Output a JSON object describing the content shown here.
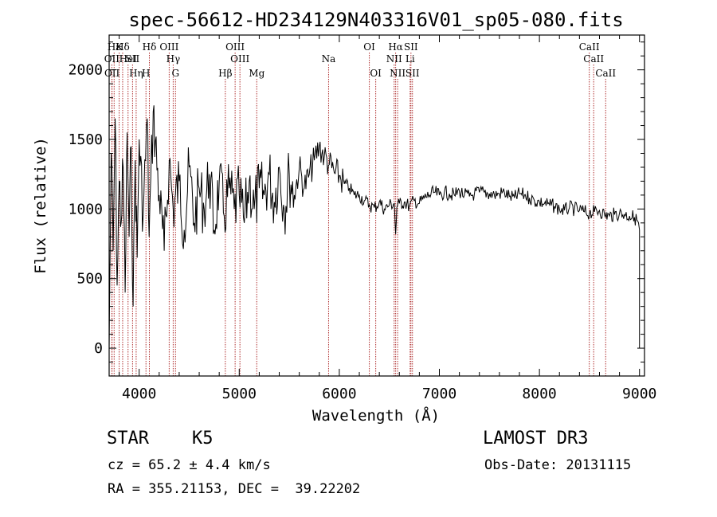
{
  "chart_data": {
    "type": "line",
    "title": "spec-56612-HD234129N403316V01_sp05-080.fits",
    "xlabel": "Wavelength (Å)",
    "ylabel": "Flux (relative)",
    "xlim": [
      3700,
      9050
    ],
    "ylim": [
      -200,
      2250
    ],
    "xticks": [
      4000,
      5000,
      6000,
      7000,
      8000,
      9000
    ],
    "yticks": [
      0,
      500,
      1000,
      1500,
      2000
    ],
    "series": [
      {
        "name": "flux",
        "x": [
          3700,
          3720,
          3740,
          3760,
          3780,
          3800,
          3820,
          3840,
          3860,
          3880,
          3900,
          3920,
          3940,
          3960,
          3980,
          4000,
          4040,
          4080,
          4100,
          4140,
          4200,
          4250,
          4300,
          4340,
          4400,
          4450,
          4500,
          4550,
          4600,
          4650,
          4700,
          4750,
          4800,
          4850,
          4900,
          4950,
          5000,
          5050,
          5100,
          5150,
          5200,
          5250,
          5300,
          5350,
          5400,
          5450,
          5500,
          5550,
          5600,
          5650,
          5700,
          5750,
          5800,
          5850,
          5900,
          5950,
          6000,
          6050,
          6100,
          6150,
          6200,
          6250,
          6300,
          6350,
          6400,
          6450,
          6500,
          6550,
          6563,
          6575,
          6600,
          6650,
          6700,
          6750,
          6800,
          6850,
          6900,
          6950,
          7000,
          7050,
          7100,
          7150,
          7200,
          7250,
          7300,
          7350,
          7400,
          7450,
          7500,
          7550,
          7600,
          7650,
          7700,
          7750,
          7800,
          7850,
          7900,
          7950,
          8000,
          8050,
          8100,
          8150,
          8200,
          8250,
          8300,
          8350,
          8400,
          8450,
          8500,
          8550,
          8600,
          8650,
          8700,
          8750,
          8800,
          8850,
          8900,
          8950,
          8990,
          9000
        ],
        "values": [
          0,
          1400,
          700,
          1650,
          450,
          1200,
          900,
          1300,
          400,
          1550,
          800,
          1450,
          300,
          1350,
          650,
          1500,
          950,
          1650,
          800,
          1700,
          1100,
          700,
          1350,
          1000,
          1200,
          850,
          1300,
          900,
          1150,
          1000,
          1250,
          850,
          1200,
          950,
          1150,
          1000,
          1100,
          900,
          1200,
          1000,
          1150,
          1100,
          1250,
          1050,
          1300,
          1000,
          1250,
          1100,
          1300,
          1150,
          1250,
          1350,
          1450,
          1380,
          1320,
          1260,
          1240,
          1180,
          1150,
          1100,
          1100,
          1060,
          1030,
          1010,
          1050,
          1000,
          1030,
          1040,
          820,
          1010,
          1040,
          1050,
          1020,
          1060,
          1040,
          1080,
          1100,
          1120,
          1100,
          1120,
          1110,
          1100,
          1130,
          1100,
          1090,
          1110,
          1120,
          1120,
          1110,
          1100,
          1110,
          1120,
          1090,
          1080,
          1110,
          1100,
          1080,
          1060,
          1050,
          1040,
          1030,
          1020,
          1000,
          990,
          1010,
          1000,
          990,
          980,
          970,
          980,
          990,
          960,
          950,
          960,
          970,
          960,
          950,
          940,
          900,
          850
        ]
      }
    ],
    "lines": [
      {
        "label": "Hε",
        "wl": 3750,
        "row": 0
      },
      {
        "label": "K",
        "wl": 3800,
        "row": 0
      },
      {
        "label": "Hδ",
        "wl": 3835,
        "row": 0
      },
      {
        "label": "OII",
        "wl": 3727,
        "row": 1
      },
      {
        "label": "HeI",
        "wl": 3889,
        "row": 1
      },
      {
        "label": "SII",
        "wl": 3934,
        "row": 1
      },
      {
        "label": "OII",
        "wl": 3729,
        "row": 2
      },
      {
        "label": "Hη",
        "wl": 3970,
        "row": 2
      },
      {
        "label": "H",
        "wl": 4068,
        "row": 2
      },
      {
        "label": "Hδ",
        "wl": 4102,
        "row": 0
      },
      {
        "label": "OIII",
        "wl": 4300,
        "row": 0
      },
      {
        "label": "Hγ",
        "wl": 4340,
        "row": 1
      },
      {
        "label": "G",
        "wl": 4363,
        "row": 2
      },
      {
        "label": "Hβ",
        "wl": 4861,
        "row": 2
      },
      {
        "label": "OIII",
        "wl": 4959,
        "row": 0
      },
      {
        "label": "OIII",
        "wl": 5007,
        "row": 1
      },
      {
        "label": "Mg",
        "wl": 5175,
        "row": 2
      },
      {
        "label": "Na",
        "wl": 5893,
        "row": 1
      },
      {
        "label": "OI",
        "wl": 6300,
        "row": 0
      },
      {
        "label": "OI",
        "wl": 6364,
        "row": 2
      },
      {
        "label": "Hα",
        "wl": 6563,
        "row": 0
      },
      {
        "label": "NII",
        "wl": 6548,
        "row": 1
      },
      {
        "label": "NII",
        "wl": 6583,
        "row": 2
      },
      {
        "label": "SII",
        "wl": 6716,
        "row": 0
      },
      {
        "label": "Li",
        "wl": 6708,
        "row": 1
      },
      {
        "label": "SII",
        "wl": 6731,
        "row": 2
      },
      {
        "label": "CaII",
        "wl": 8498,
        "row": 0
      },
      {
        "label": "CaII",
        "wl": 8542,
        "row": 1
      },
      {
        "label": "CaII",
        "wl": 8662,
        "row": 2
      }
    ]
  },
  "info": {
    "class": "STAR",
    "subclass": "K5",
    "survey": "LAMOST DR3",
    "cz": "cz = 65.2 ± 4.4 km/s",
    "obs_date": "Obs-Date: 20131115",
    "radec": "RA = 355.21153, DEC =  39.22202"
  },
  "colors": {
    "spectrum": "#000000",
    "line_marker": "#b03030",
    "axis": "#000000"
  }
}
